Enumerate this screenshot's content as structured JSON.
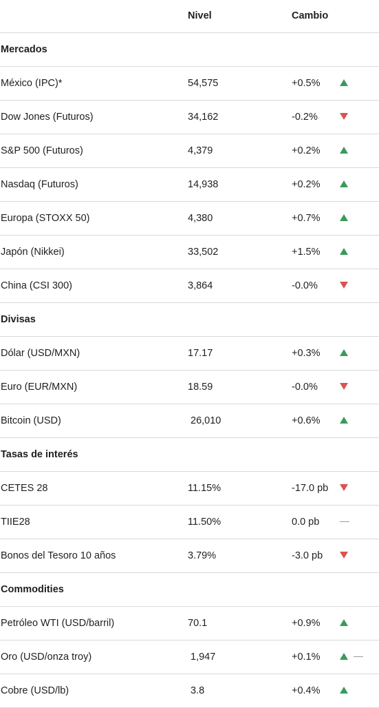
{
  "header": {
    "level_label": "Nivel",
    "change_label": "Cambio"
  },
  "colors": {
    "up": "#3a9a5b",
    "down": "#d9534f",
    "flat": "#9a9a9a",
    "divider": "#d9d9d9"
  },
  "sections": [
    {
      "title": "Mercados",
      "rows": [
        {
          "name": "México (IPC)*",
          "level": "54,575",
          "change": "+0.5%",
          "trend": "up"
        },
        {
          "name": "Dow Jones (Futuros)",
          "level": "34,162",
          "change": "-0.2%",
          "trend": "down"
        },
        {
          "name": "S&P 500 (Futuros)",
          "level": "4,379",
          "change": "+0.2%",
          "trend": "up"
        },
        {
          "name": "Nasdaq (Futuros)",
          "level": "14,938",
          "change": "+0.2%",
          "trend": "up"
        },
        {
          "name": "Europa (STOXX 50)",
          "level": "4,380",
          "change": "+0.7%",
          "trend": "up"
        },
        {
          "name": "Japón (Nikkei)",
          "level": "33,502",
          "change": "+1.5%",
          "trend": "up"
        },
        {
          "name": "China (CSI 300)",
          "level": "3,864",
          "change": "-0.0%",
          "trend": "down"
        }
      ]
    },
    {
      "title": "Divisas",
      "rows": [
        {
          "name": "Dólar (USD/MXN)",
          "level": "17.17",
          "change": "+0.3%",
          "trend": "up"
        },
        {
          "name": "Euro (EUR/MXN)",
          "level": "18.59",
          "change": "-0.0%",
          "trend": "down"
        },
        {
          "name": "Bitcoin (USD)",
          "level": "26,010",
          "change": "+0.6%",
          "trend": "up",
          "level_shift": true
        }
      ]
    },
    {
      "title": "Tasas de interés",
      "rows": [
        {
          "name": "CETES 28",
          "level": "11.15%",
          "change": "-17.0 pb",
          "trend": "down"
        },
        {
          "name": "TIIE28",
          "level": "11.50%",
          "change": "0.0 pb",
          "trend": "flat"
        },
        {
          "name": "Bonos del Tesoro 10 años",
          "level": "3.79%",
          "change": "-3.0 pb",
          "trend": "down"
        }
      ]
    },
    {
      "title": "Commodities",
      "rows": [
        {
          "name": "Petróleo WTI (USD/barril)",
          "level": "70.1",
          "change": "+0.9%",
          "trend": "up"
        },
        {
          "name": "Oro (USD/onza troy)",
          "level": "1,947",
          "change": "+0.1%",
          "trend": "up",
          "extra_flat": true,
          "level_shift": true
        },
        {
          "name": "Cobre (USD/lb)",
          "level": "3.8",
          "change": "+0.4%",
          "trend": "up",
          "level_shift": true
        }
      ]
    }
  ]
}
